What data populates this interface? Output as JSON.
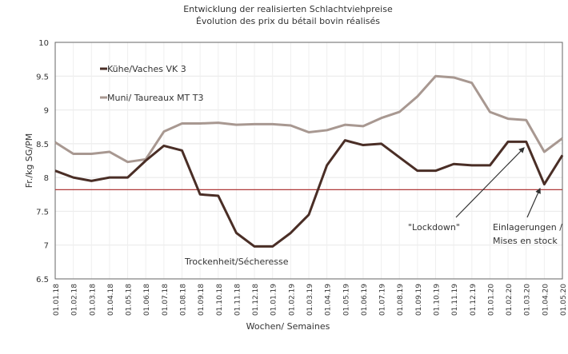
{
  "chart_data": {
    "type": "line",
    "title": "Entwicklung der realisierten Schlachtviehpreise",
    "subtitle": "Évolution des prix du bétail bovin réalisés",
    "xlabel": "Wochen/ Semaines",
    "ylabel": "Fr./kg SG/PM",
    "ylim": [
      6.5,
      10
    ],
    "yticks": [
      "6.5",
      "7",
      "7.5",
      "8",
      "8.5",
      "9",
      "9.5",
      "10"
    ],
    "categories": [
      "01.01.18",
      "01.02.18",
      "01.03.18",
      "01.04.18",
      "01.05.18",
      "01.06.18",
      "01.07.18",
      "01.08.18",
      "01.09.18",
      "01.10.18",
      "01.11.18",
      "01.12.18",
      "01.01.19",
      "01.02.19",
      "01.03.19",
      "01.04.19",
      "01.05.19",
      "01.06.19",
      "01.07.19",
      "01.08.19",
      "01.09.19",
      "01.10.19",
      "01.11.19",
      "01.12.19",
      "01.01.20",
      "01.02.20",
      "01.03.20",
      "01.04.20",
      "01.05.20"
    ],
    "series": [
      {
        "name": "Kühe/Vaches VK 3",
        "color": "#4a2e26",
        "values": [
          8.1,
          8.0,
          7.95,
          8.0,
          8.0,
          8.25,
          8.47,
          8.4,
          7.75,
          7.73,
          7.18,
          6.98,
          6.98,
          7.18,
          7.45,
          8.18,
          8.55,
          8.48,
          8.5,
          8.3,
          8.1,
          8.1,
          8.2,
          8.18,
          8.18,
          8.53,
          8.53,
          7.9,
          8.33
        ]
      },
      {
        "name": "Muni/ Taureaux MT T3",
        "color": "#a89891",
        "values": [
          8.52,
          8.35,
          8.35,
          8.38,
          8.23,
          8.27,
          8.68,
          8.8,
          8.8,
          8.81,
          8.78,
          8.79,
          8.79,
          8.77,
          8.67,
          8.7,
          8.78,
          8.76,
          8.88,
          8.97,
          9.2,
          9.5,
          9.48,
          9.4,
          8.97,
          8.87,
          8.85,
          8.38,
          8.58
        ]
      }
    ],
    "reference_line": {
      "value": 7.82,
      "color": "#b03a3a"
    },
    "annotations": [
      {
        "text": "Trockenheit/Sécheresse"
      },
      {
        "text": "\"Lockdown\""
      },
      {
        "text": "Einlagerungen /",
        "text2": "Mises en stock"
      }
    ],
    "grid": true,
    "legend": "top-left"
  }
}
